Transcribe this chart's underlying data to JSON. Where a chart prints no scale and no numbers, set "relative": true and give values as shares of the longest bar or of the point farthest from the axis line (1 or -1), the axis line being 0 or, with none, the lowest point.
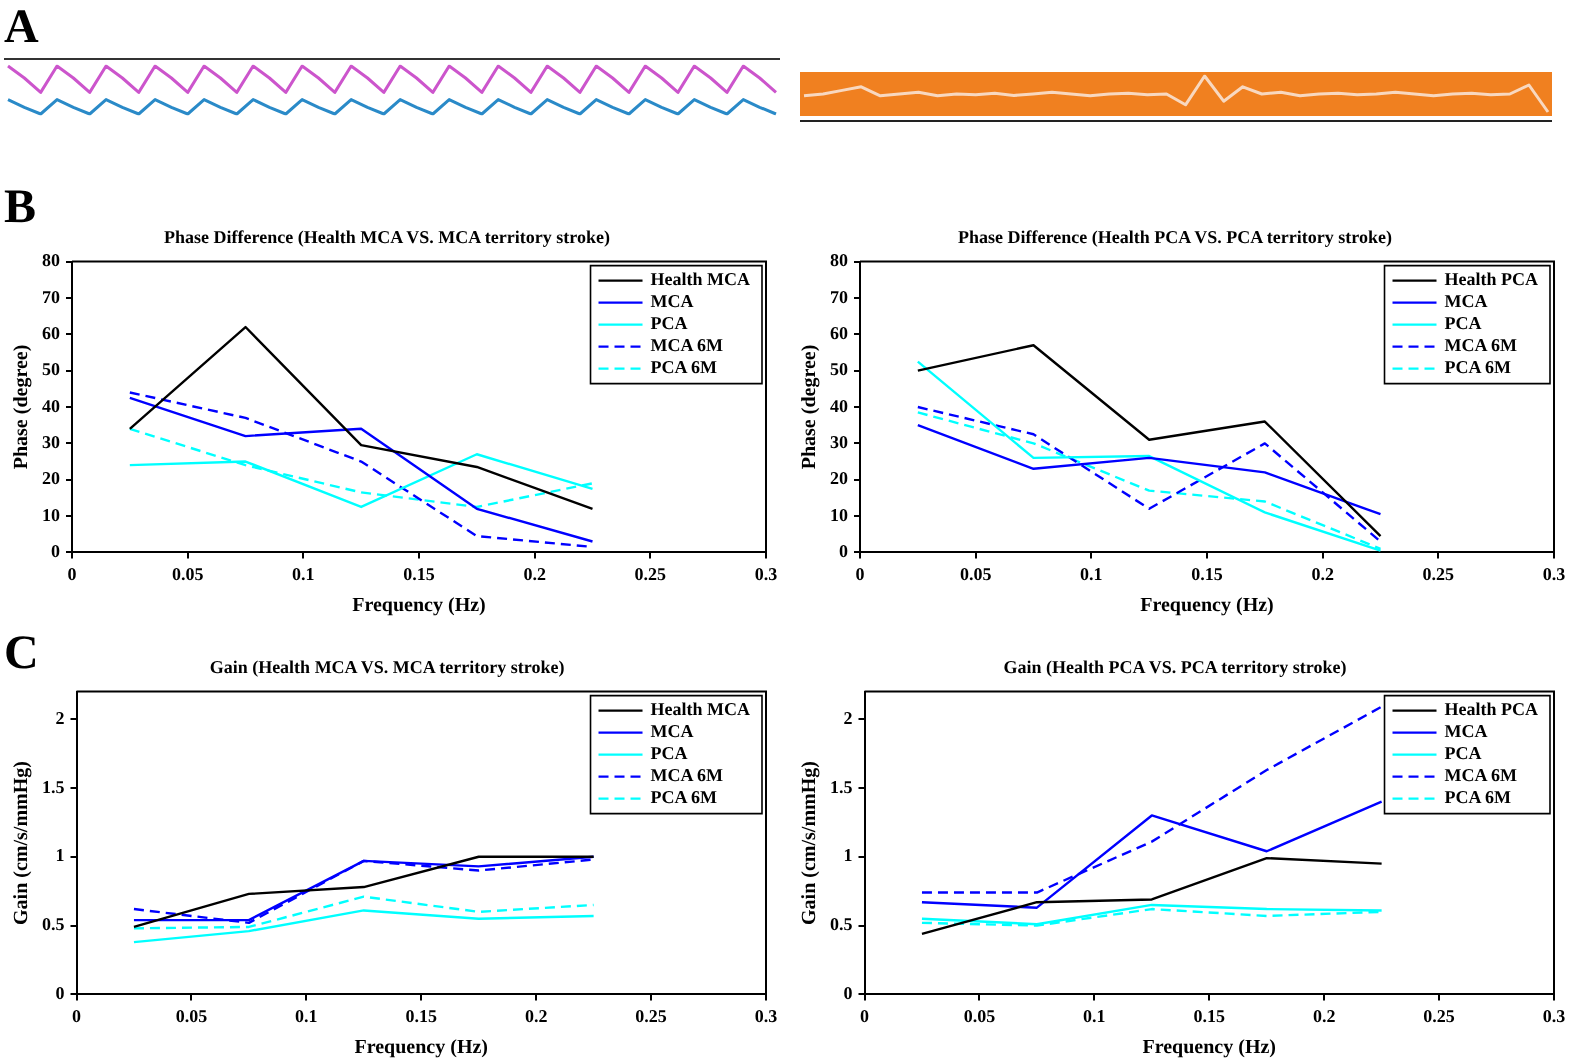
{
  "chart_data": [
    {
      "type": "line",
      "relative": true,
      "annotations": [
        "A"
      ],
      "categories": [
        null,
        null,
        null,
        null,
        null,
        null,
        null,
        null,
        null,
        null,
        null,
        null,
        null,
        null,
        null,
        null,
        null,
        null,
        null,
        null,
        null,
        null,
        null,
        null,
        null,
        null,
        null,
        null,
        null,
        null,
        null,
        null,
        null,
        null,
        null,
        null,
        null,
        null,
        null,
        null,
        null,
        null,
        null,
        null,
        null,
        null,
        null,
        null
      ],
      "series": [
        {
          "color": "#cc55cc",
          "values": [
            1,
            0.75,
            0.45,
            1,
            0.75,
            0.45,
            1,
            0.75,
            0.45,
            1,
            0.75,
            0.45,
            1,
            0.75,
            0.45,
            1,
            0.75,
            0.45,
            1,
            0.75,
            0.45,
            1,
            0.75,
            0.45,
            1,
            0.75,
            0.45,
            1,
            0.75,
            0.45,
            1,
            0.75,
            0.45,
            1,
            0.75,
            0.45,
            1,
            0.75,
            0.45,
            1,
            0.75,
            0.45,
            1,
            0.75,
            0.45,
            1,
            0.75,
            0.45
          ]
        },
        {
          "color": "#2a8ac8",
          "values": [
            0.3,
            0.14,
            0,
            0.3,
            0.14,
            0,
            0.3,
            0.14,
            0,
            0.3,
            0.14,
            0,
            0.3,
            0.14,
            0,
            0.3,
            0.14,
            0,
            0.3,
            0.14,
            0,
            0.3,
            0.14,
            0,
            0.3,
            0.14,
            0,
            0.3,
            0.14,
            0,
            0.3,
            0.14,
            0,
            0.3,
            0.14,
            0,
            0.3,
            0.14,
            0,
            0.3,
            0.14,
            0,
            0.3,
            0.14,
            0,
            0.3,
            0.14,
            0
          ]
        }
      ]
    },
    {
      "type": "line",
      "relative": true,
      "categories": [
        null,
        null,
        null,
        null,
        null,
        null,
        null,
        null,
        null,
        null,
        null,
        null,
        null,
        null,
        null,
        null,
        null,
        null,
        null,
        null,
        null,
        null,
        null,
        null,
        null,
        null,
        null,
        null,
        null,
        null,
        null,
        null,
        null,
        null,
        null,
        null,
        null,
        null,
        null,
        null
      ],
      "series": [
        {
          "color": "#f8d8c0",
          "values": [
            0.45,
            0.5,
            0.6,
            0.7,
            0.45,
            0.5,
            0.55,
            0.45,
            0.5,
            0.48,
            0.52,
            0.46,
            0.5,
            0.55,
            0.5,
            0.45,
            0.5,
            0.52,
            0.48,
            0.5,
            0.2,
            1,
            0.3,
            0.7,
            0.5,
            0.55,
            0.45,
            0.5,
            0.52,
            0.48,
            0.5,
            0.55,
            0.5,
            0.45,
            0.5,
            0.52,
            0.48,
            0.5,
            0.75,
            0
          ]
        }
      ]
    },
    {
      "type": "line",
      "title": "Phase Difference (Health MCA VS. MCA territory stroke)",
      "xlabel": "Frequency (Hz)",
      "ylabel": "Phase (degree)",
      "annotations": [
        "B"
      ],
      "x": [
        0.025,
        0.075,
        0.125,
        0.175,
        0.225
      ],
      "xlim": [
        0,
        0.3
      ],
      "xticks": [
        0,
        0.05,
        0.1,
        0.15,
        0.2,
        0.25,
        0.3
      ],
      "ylim": [
        0,
        80
      ],
      "yticks": [
        0,
        10,
        20,
        30,
        40,
        50,
        60,
        70,
        80
      ],
      "grid": false,
      "legend": "top right",
      "series": [
        {
          "name": "Health MCA",
          "color": "#000000",
          "line_style": "solid",
          "values": [
            34,
            62,
            29.5,
            23.5,
            12
          ]
        },
        {
          "name": "MCA",
          "color": "#0000ff",
          "line_style": "solid",
          "values": [
            42.5,
            32,
            34,
            12,
            3
          ]
        },
        {
          "name": "PCA",
          "color": "#00ffff",
          "line_style": "solid",
          "values": [
            24,
            25,
            12.5,
            27,
            17.5
          ]
        },
        {
          "name": "MCA 6M",
          "color": "#0000ff",
          "line_style": "dashed",
          "values": [
            44,
            37,
            25,
            4.5,
            1.5
          ]
        },
        {
          "name": "PCA 6M",
          "color": "#00ffff",
          "line_style": "dashed",
          "values": [
            34,
            24,
            16.5,
            12.5,
            19
          ]
        }
      ]
    },
    {
      "type": "line",
      "title": "Phase Difference (Health PCA VS. PCA territory stroke)",
      "xlabel": "Frequency (Hz)",
      "ylabel": "Phase (degree)",
      "x": [
        0.025,
        0.075,
        0.125,
        0.175,
        0.225
      ],
      "xlim": [
        0,
        0.3
      ],
      "xticks": [
        0,
        0.05,
        0.1,
        0.15,
        0.2,
        0.25,
        0.3
      ],
      "ylim": [
        0,
        80
      ],
      "yticks": [
        0,
        10,
        20,
        30,
        40,
        50,
        60,
        70,
        80
      ],
      "grid": false,
      "legend": "top right",
      "series": [
        {
          "name": "Health PCA",
          "color": "#000000",
          "line_style": "solid",
          "values": [
            50,
            57,
            31,
            36,
            4.5
          ]
        },
        {
          "name": "MCA",
          "color": "#0000ff",
          "line_style": "solid",
          "values": [
            35,
            23,
            26,
            22,
            10.5
          ]
        },
        {
          "name": "PCA",
          "color": "#00ffff",
          "line_style": "solid",
          "values": [
            52.5,
            26,
            26.5,
            11,
            0.5
          ]
        },
        {
          "name": "MCA 6M",
          "color": "#0000ff",
          "line_style": "dashed",
          "values": [
            40,
            32.5,
            12,
            30,
            3
          ]
        },
        {
          "name": "PCA 6M",
          "color": "#00ffff",
          "line_style": "dashed",
          "values": [
            38.5,
            30,
            17,
            14,
            1
          ]
        }
      ]
    },
    {
      "type": "line",
      "title": "Gain (Health MCA VS. MCA territory stroke)",
      "xlabel": "Frequency (Hz)",
      "ylabel": "Gain (cm/s/mmHg)",
      "annotations": [
        "C"
      ],
      "x": [
        0.025,
        0.075,
        0.125,
        0.175,
        0.225
      ],
      "xlim": [
        0,
        0.3
      ],
      "xticks": [
        0,
        0.05,
        0.1,
        0.15,
        0.2,
        0.25,
        0.3
      ],
      "ylim": [
        0,
        2.2
      ],
      "yticks": [
        0,
        0.5,
        1,
        1.5,
        2
      ],
      "grid": false,
      "legend": "top right",
      "series": [
        {
          "name": "Health MCA",
          "color": "#000000",
          "line_style": "solid",
          "values": [
            0.49,
            0.73,
            0.78,
            1.0,
            1.0
          ]
        },
        {
          "name": "MCA",
          "color": "#0000ff",
          "line_style": "solid",
          "values": [
            0.54,
            0.54,
            0.97,
            0.93,
            1.0
          ]
        },
        {
          "name": "PCA",
          "color": "#00ffff",
          "line_style": "solid",
          "values": [
            0.38,
            0.46,
            0.61,
            0.55,
            0.57
          ]
        },
        {
          "name": "MCA 6M",
          "color": "#0000ff",
          "line_style": "dashed",
          "values": [
            0.62,
            0.52,
            0.97,
            0.9,
            0.98
          ]
        },
        {
          "name": "PCA 6M",
          "color": "#00ffff",
          "line_style": "dashed",
          "values": [
            0.48,
            0.49,
            0.71,
            0.6,
            0.65
          ]
        }
      ]
    },
    {
      "type": "line",
      "title": "Gain (Health PCA VS. PCA territory stroke)",
      "xlabel": "Frequency (Hz)",
      "ylabel": "Gain (cm/s/mmHg)",
      "x": [
        0.025,
        0.075,
        0.125,
        0.175,
        0.225
      ],
      "xlim": [
        0,
        0.3
      ],
      "xticks": [
        0,
        0.05,
        0.1,
        0.15,
        0.2,
        0.25,
        0.3
      ],
      "ylim": [
        0,
        2.2
      ],
      "yticks": [
        0,
        0.5,
        1,
        1.5,
        2
      ],
      "grid": false,
      "legend": "top right",
      "series": [
        {
          "name": "Health PCA",
          "color": "#000000",
          "line_style": "solid",
          "values": [
            0.44,
            0.67,
            0.69,
            0.99,
            0.95
          ]
        },
        {
          "name": "MCA",
          "color": "#0000ff",
          "line_style": "solid",
          "values": [
            0.67,
            0.63,
            1.3,
            1.04,
            1.4
          ]
        },
        {
          "name": "PCA",
          "color": "#00ffff",
          "line_style": "solid",
          "values": [
            0.55,
            0.51,
            0.65,
            0.62,
            0.61
          ]
        },
        {
          "name": "MCA 6M",
          "color": "#0000ff",
          "line_style": "dashed",
          "values": [
            0.74,
            0.74,
            1.11,
            1.63,
            2.09
          ]
        },
        {
          "name": "PCA 6M",
          "color": "#00ffff",
          "line_style": "dashed",
          "values": [
            0.52,
            0.5,
            0.62,
            0.57,
            0.6
          ]
        }
      ]
    }
  ]
}
